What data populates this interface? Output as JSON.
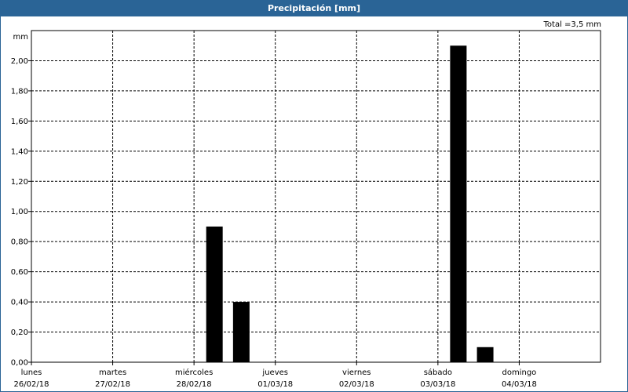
{
  "window": {
    "title": "Precipitación [mm]"
  },
  "total_label": "Total =3,5 mm",
  "chart_data": {
    "type": "bar",
    "title": "Precipitación [mm]",
    "ylabel": "mm",
    "ylim": [
      0,
      2.2
    ],
    "yticks": [
      "0,00",
      "0,20",
      "0,40",
      "0,60",
      "0,80",
      "1,00",
      "1,20",
      "1,40",
      "1,60",
      "1,80",
      "2,00"
    ],
    "xlim_days": [
      0,
      7
    ],
    "x_labels": [
      {
        "day": "lunes",
        "date": "26/02/18"
      },
      {
        "day": "martes",
        "date": "27/02/18"
      },
      {
        "day": "miércoles",
        "date": "28/02/18"
      },
      {
        "day": "jueves",
        "date": "01/03/18"
      },
      {
        "day": "viernes",
        "date": "02/03/18"
      },
      {
        "day": "sábado",
        "date": "03/03/18"
      },
      {
        "day": "domingo",
        "date": "04/03/18"
      }
    ],
    "bars": [
      {
        "x": 2.15,
        "value": 0.9
      },
      {
        "x": 2.48,
        "value": 0.4
      },
      {
        "x": 5.15,
        "value": 2.1
      },
      {
        "x": 5.48,
        "value": 0.1
      }
    ],
    "grid": true,
    "bar_color": "#000000"
  }
}
